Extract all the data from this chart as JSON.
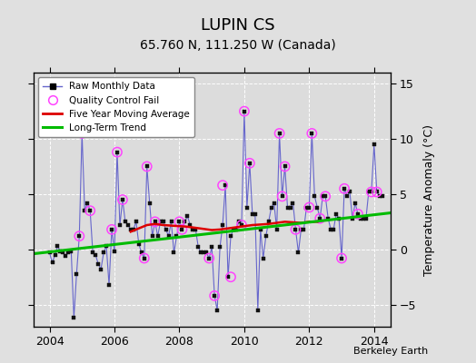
{
  "title": "LUPIN CS",
  "subtitle": "65.760 N, 111.250 W (Canada)",
  "ylabel": "Temperature Anomaly (°C)",
  "credit": "Berkeley Earth",
  "xlim": [
    2003.5,
    2014.5
  ],
  "ylim": [
    -7,
    16
  ],
  "yticks": [
    -5,
    0,
    5,
    10,
    15
  ],
  "xticks": [
    2004,
    2006,
    2008,
    2010,
    2012,
    2014
  ],
  "bg_color": "#e0e0e0",
  "plot_bg_color": "#dcdcdc",
  "raw_color": "#6666cc",
  "raw_lw": 0.8,
  "marker_color": "#111111",
  "qc_color": "#ff44ff",
  "ma_color": "#dd0000",
  "trend_color": "#00bb00",
  "trend_lw": 2.2,
  "ma_lw": 1.8,
  "raw_months": [
    2004.0,
    2004.083,
    2004.167,
    2004.25,
    2004.333,
    2004.417,
    2004.5,
    2004.583,
    2004.667,
    2004.75,
    2004.833,
    2004.917,
    2005.0,
    2005.083,
    2005.167,
    2005.25,
    2005.333,
    2005.417,
    2005.5,
    2005.583,
    2005.667,
    2005.75,
    2005.833,
    2005.917,
    2006.0,
    2006.083,
    2006.167,
    2006.25,
    2006.333,
    2006.417,
    2006.5,
    2006.583,
    2006.667,
    2006.75,
    2006.833,
    2006.917,
    2007.0,
    2007.083,
    2007.167,
    2007.25,
    2007.333,
    2007.417,
    2007.5,
    2007.583,
    2007.667,
    2007.75,
    2007.833,
    2007.917,
    2008.0,
    2008.083,
    2008.167,
    2008.25,
    2008.333,
    2008.417,
    2008.5,
    2008.583,
    2008.667,
    2008.75,
    2008.833,
    2008.917,
    2009.0,
    2009.083,
    2009.167,
    2009.25,
    2009.333,
    2009.417,
    2009.5,
    2009.583,
    2009.667,
    2009.75,
    2009.833,
    2009.917,
    2010.0,
    2010.083,
    2010.167,
    2010.25,
    2010.333,
    2010.417,
    2010.5,
    2010.583,
    2010.667,
    2010.75,
    2010.833,
    2010.917,
    2011.0,
    2011.083,
    2011.167,
    2011.25,
    2011.333,
    2011.417,
    2011.5,
    2011.583,
    2011.667,
    2011.75,
    2011.833,
    2011.917,
    2012.0,
    2012.083,
    2012.167,
    2012.25,
    2012.333,
    2012.417,
    2012.5,
    2012.583,
    2012.667,
    2012.75,
    2012.833,
    2012.917,
    2013.0,
    2013.083,
    2013.167,
    2013.25,
    2013.333,
    2013.417,
    2013.5,
    2013.583,
    2013.667,
    2013.75,
    2013.833,
    2013.917,
    2014.0,
    2014.083,
    2014.167,
    2014.25
  ],
  "raw_values": [
    -0.3,
    -1.2,
    -0.5,
    0.3,
    -0.2,
    -0.3,
    -0.6,
    -0.3,
    -0.2,
    -6.2,
    -2.2,
    1.2,
    10.5,
    3.5,
    4.2,
    3.5,
    -0.3,
    -0.5,
    -1.3,
    -1.8,
    -0.3,
    0.3,
    -3.2,
    1.8,
    -0.2,
    8.8,
    2.2,
    4.5,
    2.5,
    2.2,
    1.8,
    1.8,
    2.5,
    0.5,
    -0.3,
    -0.8,
    7.5,
    4.2,
    1.2,
    2.5,
    1.2,
    2.5,
    2.5,
    1.8,
    1.2,
    2.5,
    -0.3,
    1.2,
    2.5,
    1.8,
    2.5,
    3.0,
    2.2,
    1.8,
    1.8,
    0.2,
    -0.3,
    -0.3,
    -0.3,
    -0.8,
    0.2,
    -4.2,
    -5.5,
    0.2,
    2.2,
    5.8,
    -2.5,
    1.2,
    1.8,
    1.8,
    2.5,
    2.2,
    12.5,
    3.8,
    7.8,
    3.2,
    3.2,
    -5.5,
    1.8,
    -0.8,
    1.2,
    2.5,
    3.8,
    4.2,
    1.8,
    10.5,
    4.8,
    7.5,
    3.8,
    3.8,
    4.2,
    1.8,
    -0.3,
    1.8,
    1.8,
    3.8,
    3.8,
    10.5,
    4.8,
    3.8,
    2.8,
    4.8,
    4.8,
    2.8,
    1.8,
    1.8,
    3.2,
    2.8,
    -0.8,
    5.5,
    4.8,
    5.2,
    2.8,
    4.2,
    3.2,
    2.8,
    2.8,
    2.8,
    5.2,
    5.2,
    9.5,
    5.2,
    4.8,
    4.8
  ],
  "qc_fail_x": [
    2004.917,
    2005.0,
    2005.25,
    2005.917,
    2006.083,
    2006.25,
    2006.917,
    2007.0,
    2007.25,
    2008.0,
    2008.083,
    2008.917,
    2009.083,
    2009.333,
    2009.583,
    2009.917,
    2010.0,
    2010.167,
    2011.083,
    2011.167,
    2011.25,
    2011.583,
    2012.0,
    2012.083,
    2012.333,
    2012.5,
    2013.0,
    2013.083,
    2013.5,
    2013.917,
    2014.083
  ],
  "qc_fail_y": [
    1.2,
    10.5,
    3.5,
    1.8,
    8.8,
    4.5,
    -0.8,
    7.5,
    2.5,
    2.5,
    1.8,
    -0.8,
    -4.2,
    5.8,
    -2.5,
    2.2,
    12.5,
    7.8,
    10.5,
    4.8,
    7.5,
    1.8,
    3.8,
    10.5,
    2.8,
    4.8,
    -0.8,
    5.5,
    3.2,
    5.2,
    5.2
  ],
  "ma_x": [
    2006.5,
    2006.75,
    2007.0,
    2007.25,
    2007.5,
    2007.75,
    2008.0,
    2008.25,
    2008.5,
    2008.75,
    2009.0,
    2009.25,
    2009.5,
    2009.75,
    2010.0,
    2010.25,
    2010.5,
    2010.75,
    2011.0,
    2011.25,
    2011.5,
    2011.75,
    2012.0,
    2012.25
  ],
  "ma_y": [
    1.6,
    1.9,
    2.2,
    2.3,
    2.2,
    2.15,
    2.1,
    2.05,
    1.95,
    1.85,
    1.75,
    1.8,
    1.9,
    2.0,
    2.1,
    2.2,
    2.25,
    2.3,
    2.4,
    2.5,
    2.45,
    2.4,
    2.5,
    2.5
  ],
  "trend_x": [
    2003.5,
    2014.5
  ],
  "trend_y": [
    -0.4,
    3.3
  ]
}
